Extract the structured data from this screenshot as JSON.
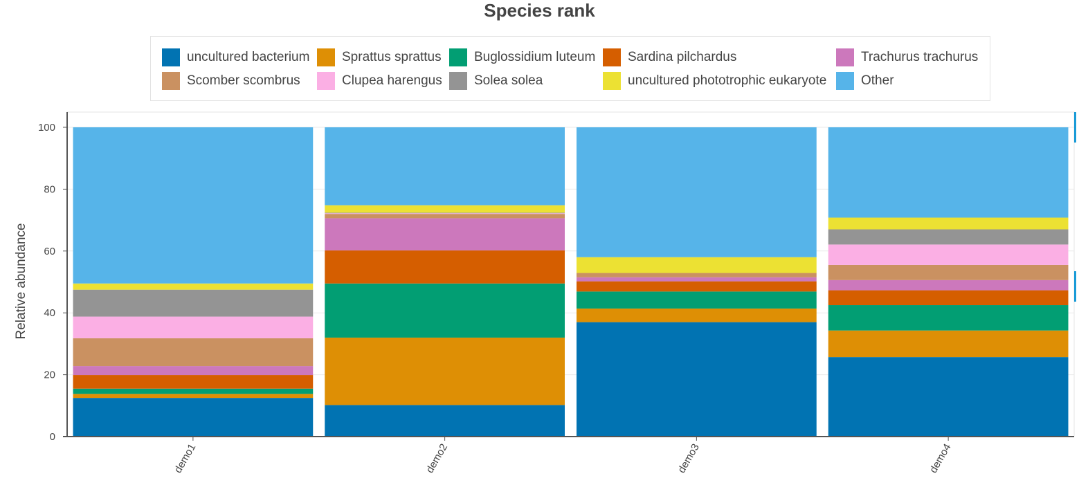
{
  "chart_data": {
    "type": "bar",
    "stacked": true,
    "title": "Species rank",
    "xlabel": "",
    "ylabel": "Relative abundance",
    "ylim": [
      0,
      100
    ],
    "yticks": [
      0,
      20,
      40,
      60,
      80,
      100
    ],
    "grid": true,
    "legend_position": "top",
    "categories": [
      "demo1",
      "demo2",
      "demo3",
      "demo4"
    ],
    "series": [
      {
        "name": "uncultured bacterium",
        "color": "#0173b2",
        "values": [
          12.5,
          10.2,
          37.0,
          25.7
        ]
      },
      {
        "name": "Sprattus sprattus",
        "color": "#de8f05",
        "values": [
          1.3,
          21.8,
          4.4,
          8.6
        ]
      },
      {
        "name": "Buglossidium luteum",
        "color": "#029e73",
        "values": [
          1.7,
          17.5,
          5.5,
          8.2
        ]
      },
      {
        "name": "Sardina pilchardus",
        "color": "#d55e00",
        "values": [
          4.4,
          10.7,
          3.3,
          4.8
        ]
      },
      {
        "name": "Trachurus trachurus",
        "color": "#cc78bc",
        "values": [
          2.9,
          10.4,
          1.3,
          3.3
        ]
      },
      {
        "name": "Scomber scombrus",
        "color": "#ca9161",
        "values": [
          9.0,
          1.4,
          1.4,
          4.9
        ]
      },
      {
        "name": "Clupea harengus",
        "color": "#fbafe4",
        "values": [
          7.0,
          0.2,
          0.0,
          6.6
        ]
      },
      {
        "name": "Solea solea",
        "color": "#949494",
        "values": [
          8.7,
          0.2,
          0.0,
          4.9
        ]
      },
      {
        "name": "uncultured phototrophic eukaryote",
        "color": "#ece133",
        "values": [
          2.0,
          2.4,
          5.1,
          3.8
        ]
      },
      {
        "name": "Other",
        "color": "#56b4e9",
        "values": [
          50.5,
          25.2,
          42.0,
          29.2
        ]
      }
    ]
  }
}
